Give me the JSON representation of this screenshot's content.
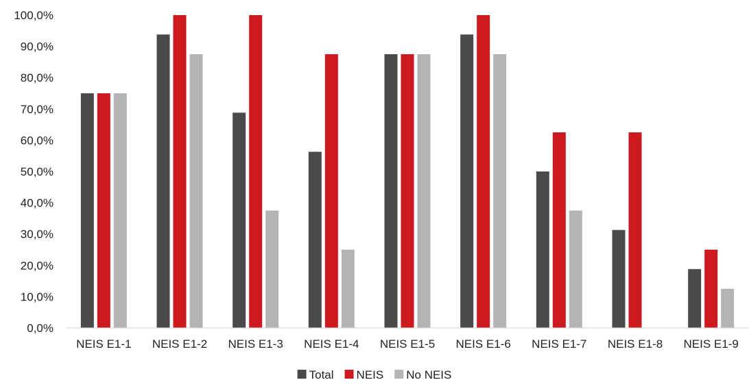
{
  "chart_data": {
    "type": "bar",
    "title": "",
    "xlabel": "",
    "ylabel": "",
    "ylim": [
      0,
      100
    ],
    "y_ticks": [
      "0,0%",
      "10,0%",
      "20,0%",
      "30,0%",
      "40,0%",
      "50,0%",
      "60,0%",
      "70,0%",
      "80,0%",
      "90,0%",
      "100,0%"
    ],
    "y_tick_values": [
      0,
      10,
      20,
      30,
      40,
      50,
      60,
      70,
      80,
      90,
      100
    ],
    "grid": false,
    "legend_position": "bottom",
    "categories": [
      "NEIS E1-1",
      "NEIS E1-2",
      "NEIS E1-3",
      "NEIS E1-4",
      "NEIS E1-5",
      "NEIS E1-6",
      "NEIS E1-7",
      "NEIS E1-8",
      "NEIS E1-9"
    ],
    "series": [
      {
        "name": "Total",
        "color": "#4a4a4a",
        "values": [
          75.0,
          93.8,
          68.8,
          56.3,
          87.5,
          93.8,
          50.0,
          31.3,
          18.8
        ]
      },
      {
        "name": "NEIS",
        "color": "#cc1a1f",
        "values": [
          75.0,
          100.0,
          100.0,
          87.5,
          87.5,
          100.0,
          62.5,
          62.5,
          25.0
        ]
      },
      {
        "name": "No NEIS",
        "color": "#b4b4b4",
        "values": [
          75.0,
          87.5,
          37.5,
          25.0,
          87.5,
          87.5,
          37.5,
          0.0,
          12.5
        ]
      }
    ]
  }
}
